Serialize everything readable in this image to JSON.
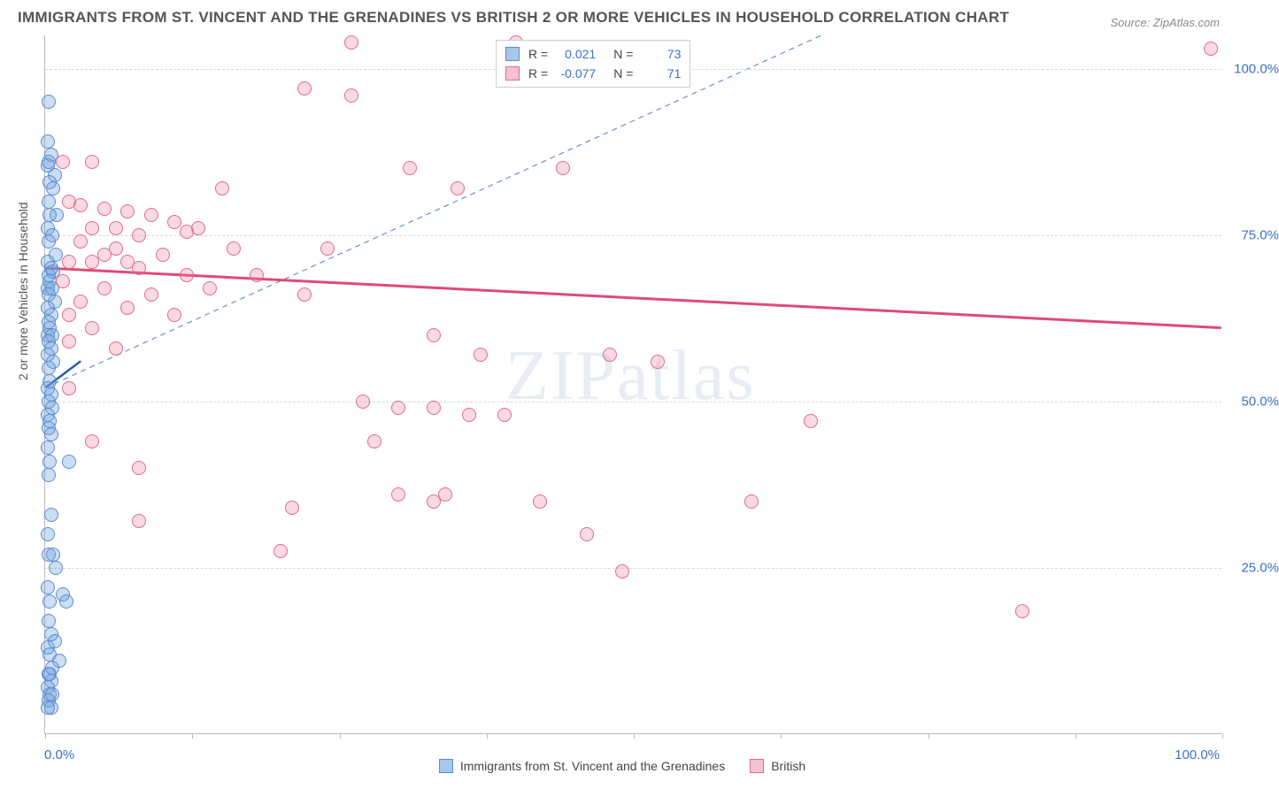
{
  "title": "IMMIGRANTS FROM ST. VINCENT AND THE GRENADINES VS BRITISH 2 OR MORE VEHICLES IN HOUSEHOLD CORRELATION CHART",
  "source": "Source: ZipAtlas.com",
  "ylabel": "2 or more Vehicles in Household",
  "watermark": "ZIPatlas",
  "chart": {
    "type": "scatter",
    "xlim": [
      0,
      100
    ],
    "ylim": [
      0,
      105
    ],
    "xticks": [
      0,
      12.5,
      25,
      37.5,
      50,
      62.5,
      75,
      87.5,
      100
    ],
    "yticks": [
      25,
      50,
      75,
      100
    ],
    "ytick_labels": [
      "25.0%",
      "50.0%",
      "75.0%",
      "100.0%"
    ],
    "xtick_labels": {
      "0": "0.0%",
      "100": "100.0%"
    },
    "grid_color": "#d8d8d8",
    "axis_color": "#bbbbbb",
    "background_color": "#ffffff",
    "marker_radius": 8,
    "marker_opacity": 0.55,
    "marker_stroke_width": 1.2
  },
  "series": [
    {
      "name": "Immigrants from St. Vincent and the Grenadines",
      "label": "Immigrants from St. Vincent and the Grenadines",
      "color_fill": "rgba(110,160,220,0.35)",
      "color_stroke": "#5a8cd0",
      "swatch_fill": "#a9c5ea",
      "swatch_stroke": "#5a8cd0",
      "stats": {
        "R": "0.021",
        "N": "73"
      },
      "trend_line": {
        "x1": 0,
        "y1": 52,
        "x2": 3,
        "y2": 56,
        "color": "#2a5ca8",
        "width": 2.5,
        "dash": "none"
      },
      "ref_line": {
        "x1": 0,
        "y1": 52,
        "x2": 66,
        "y2": 105,
        "color": "#6a8fd0",
        "width": 1.2,
        "dash": "6,5"
      },
      "data": [
        [
          0.3,
          95
        ],
        [
          0.2,
          89
        ],
        [
          0.5,
          87
        ],
        [
          0.2,
          85.5
        ],
        [
          0.8,
          84
        ],
        [
          0.4,
          83
        ],
        [
          0.7,
          82
        ],
        [
          0.3,
          80
        ],
        [
          1.0,
          78
        ],
        [
          0.4,
          78
        ],
        [
          0.2,
          76
        ],
        [
          0.6,
          75
        ],
        [
          0.3,
          74
        ],
        [
          0.9,
          72
        ],
        [
          0.2,
          71
        ],
        [
          0.5,
          70
        ],
        [
          0.3,
          69
        ],
        [
          0.7,
          69.5
        ],
        [
          0.4,
          68
        ],
        [
          0.2,
          67
        ],
        [
          0.6,
          67
        ],
        [
          0.3,
          66
        ],
        [
          0.8,
          65
        ],
        [
          0.2,
          64
        ],
        [
          0.5,
          63
        ],
        [
          0.3,
          62
        ],
        [
          0.4,
          61
        ],
        [
          0.2,
          60
        ],
        [
          0.6,
          60
        ],
        [
          0.3,
          59
        ],
        [
          0.5,
          58
        ],
        [
          0.2,
          57
        ],
        [
          0.7,
          56
        ],
        [
          0.3,
          55
        ],
        [
          0.4,
          53
        ],
        [
          0.2,
          52
        ],
        [
          0.5,
          51
        ],
        [
          0.3,
          50
        ],
        [
          0.6,
          49
        ],
        [
          0.2,
          48
        ],
        [
          0.4,
          47
        ],
        [
          0.3,
          46
        ],
        [
          0.5,
          45
        ],
        [
          0.2,
          43
        ],
        [
          0.4,
          41
        ],
        [
          2.0,
          41
        ],
        [
          0.3,
          39
        ],
        [
          0.5,
          33
        ],
        [
          0.2,
          30
        ],
        [
          0.3,
          27
        ],
        [
          0.7,
          27
        ],
        [
          0.9,
          25
        ],
        [
          0.2,
          22
        ],
        [
          0.4,
          20
        ],
        [
          1.5,
          21
        ],
        [
          1.8,
          20
        ],
        [
          0.3,
          17
        ],
        [
          0.5,
          15
        ],
        [
          0.2,
          13
        ],
        [
          0.4,
          12
        ],
        [
          0.6,
          10
        ],
        [
          0.3,
          9
        ],
        [
          0.5,
          8
        ],
        [
          0.2,
          7
        ],
        [
          0.4,
          6
        ],
        [
          0.6,
          6
        ],
        [
          0.3,
          5
        ],
        [
          0.5,
          4
        ],
        [
          0.2,
          4
        ],
        [
          0.4,
          9
        ],
        [
          1.2,
          11
        ],
        [
          0.8,
          14
        ],
        [
          0.3,
          86
        ]
      ]
    },
    {
      "name": "British",
      "label": "British",
      "color_fill": "rgba(235,130,160,0.30)",
      "color_stroke": "#e06a8e",
      "swatch_fill": "#f4c2d0",
      "swatch_stroke": "#e06a8e",
      "stats": {
        "R": "-0.077",
        "N": "71"
      },
      "trend_line": {
        "x1": 0,
        "y1": 70,
        "x2": 100,
        "y2": 61,
        "color": "#e04a78",
        "width": 3,
        "dash": "none"
      },
      "data": [
        [
          26,
          104
        ],
        [
          40,
          104
        ],
        [
          99,
          103
        ],
        [
          22,
          97
        ],
        [
          26,
          96
        ],
        [
          1.5,
          86
        ],
        [
          4,
          86
        ],
        [
          31,
          85
        ],
        [
          44,
          85
        ],
        [
          15,
          82
        ],
        [
          35,
          82
        ],
        [
          2,
          80
        ],
        [
          3,
          79.5
        ],
        [
          5,
          79
        ],
        [
          7,
          78.5
        ],
        [
          9,
          78
        ],
        [
          6,
          76
        ],
        [
          4,
          76
        ],
        [
          11,
          77
        ],
        [
          13,
          76
        ],
        [
          8,
          75
        ],
        [
          12,
          75.5
        ],
        [
          3,
          74
        ],
        [
          6,
          73
        ],
        [
          10,
          72
        ],
        [
          16,
          73
        ],
        [
          24,
          73
        ],
        [
          2,
          71
        ],
        [
          4,
          71
        ],
        [
          8,
          70
        ],
        [
          12,
          69
        ],
        [
          18,
          69
        ],
        [
          1.5,
          68
        ],
        [
          5,
          67
        ],
        [
          14,
          67
        ],
        [
          22,
          66
        ],
        [
          3,
          65
        ],
        [
          7,
          64
        ],
        [
          2,
          63
        ],
        [
          11,
          63
        ],
        [
          4,
          61
        ],
        [
          2,
          59
        ],
        [
          6,
          58
        ],
        [
          33,
          60
        ],
        [
          37,
          57
        ],
        [
          48,
          57
        ],
        [
          52,
          56
        ],
        [
          2,
          52
        ],
        [
          27,
          50
        ],
        [
          30,
          49
        ],
        [
          33,
          49
        ],
        [
          36,
          48
        ],
        [
          39,
          48
        ],
        [
          65,
          47
        ],
        [
          4,
          44
        ],
        [
          28,
          44
        ],
        [
          8,
          40
        ],
        [
          30,
          36
        ],
        [
          33,
          35
        ],
        [
          34,
          36
        ],
        [
          42,
          35
        ],
        [
          21,
          34
        ],
        [
          60,
          35
        ],
        [
          8,
          32
        ],
        [
          46,
          30
        ],
        [
          20,
          27.5
        ],
        [
          49,
          24.5
        ],
        [
          83,
          18.5
        ],
        [
          5,
          72
        ],
        [
          7,
          71
        ],
        [
          9,
          66
        ]
      ]
    }
  ],
  "stats_legend": {
    "R_label": "R =",
    "N_label": "N ="
  },
  "bottom_legend": [
    {
      "label": "Immigrants from St. Vincent and the Grenadines",
      "swatch_fill": "#a9c5ea",
      "swatch_stroke": "#5a8cd0"
    },
    {
      "label": "British",
      "swatch_fill": "#f4c2d0",
      "swatch_stroke": "#e06a8e"
    }
  ]
}
